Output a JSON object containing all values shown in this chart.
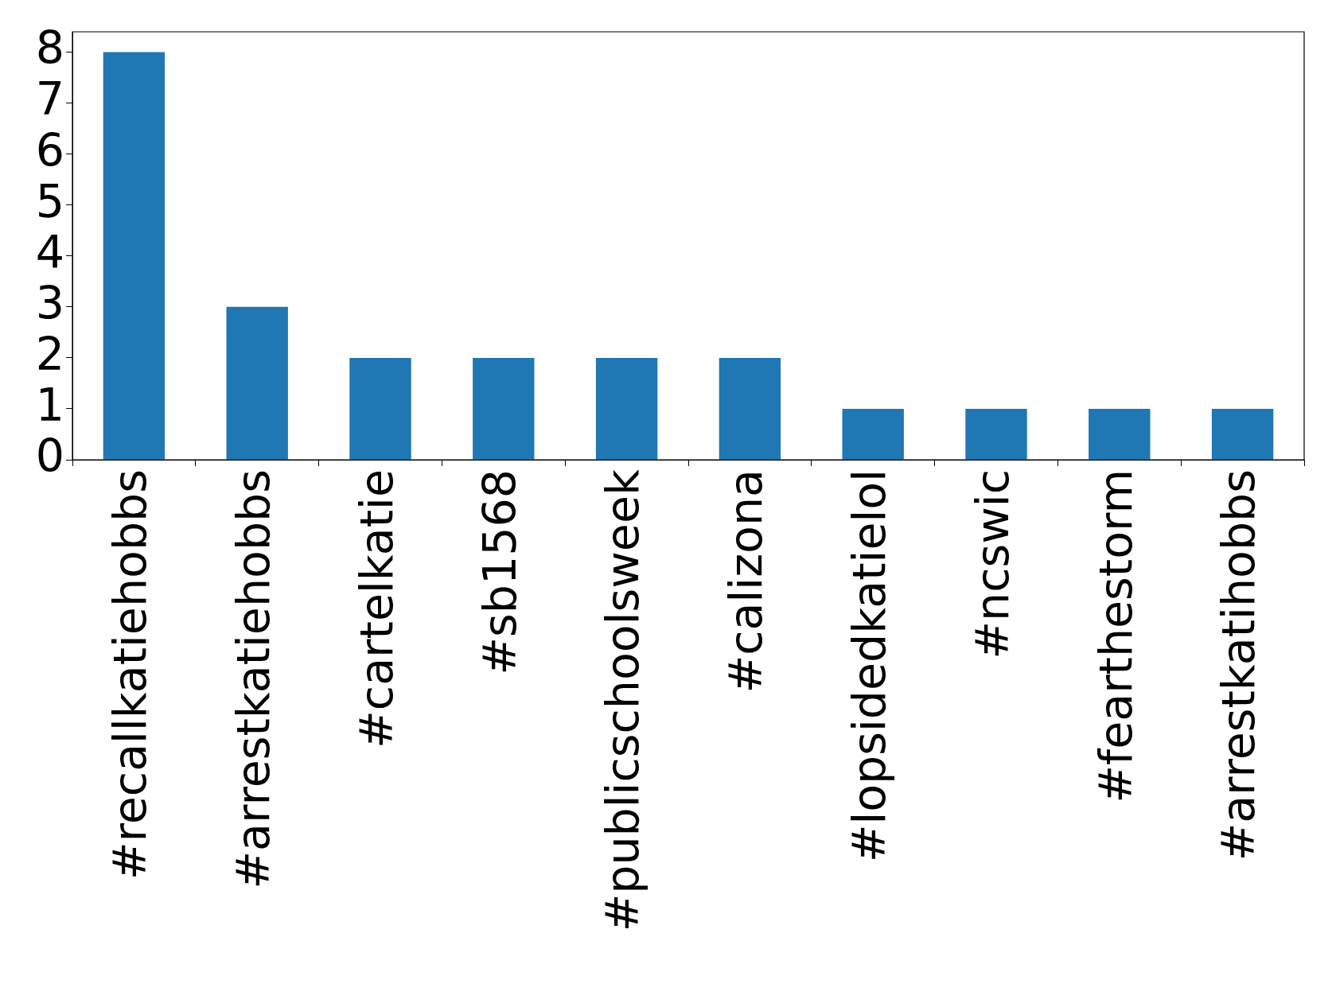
{
  "chart_data": {
    "type": "bar",
    "categories": [
      "#recallkatiehobbs",
      "#arrestkatiehobbs",
      "#cartelkatie",
      "#sb1568",
      "#publicschoolsweek",
      "#calizona",
      "#lopsidedkatielol",
      "#ncswic",
      "#fearthestorm",
      "#arrestkatihobbs"
    ],
    "values": [
      8,
      3,
      2,
      2,
      2,
      2,
      1,
      1,
      1,
      1
    ],
    "color": "#1f77b4",
    "ylim": [
      0,
      8.4
    ],
    "yticks": [
      0,
      1,
      2,
      3,
      4,
      5,
      6,
      7,
      8
    ],
    "grid": false,
    "legend": false
  }
}
